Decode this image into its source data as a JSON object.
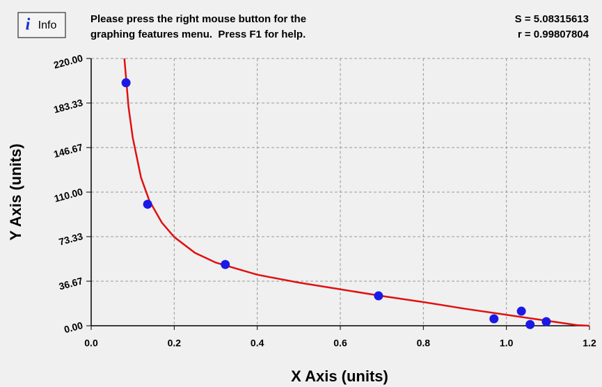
{
  "header": {
    "info_button": "Info",
    "message": [
      "Please press the right mouse button for the",
      "graphing features menu.  Press F1 for help."
    ],
    "stats": [
      "S = 5.08315613",
      "r = 0.99807804"
    ]
  },
  "chart_data": {
    "type": "scatter",
    "xlabel": "X Axis (units)",
    "ylabel": "Y Axis (units)",
    "xlim": [
      0,
      1.2
    ],
    "ylim": [
      0,
      220
    ],
    "xticks": [
      {
        "value": 0,
        "label": "0.0"
      },
      0.2,
      0.4,
      0.6,
      0.8,
      {
        "value": 1,
        "label": "1.0"
      },
      1.2
    ],
    "yticks": [
      {
        "value": 0,
        "label": "0.00"
      },
      36.67,
      73.33,
      {
        "value": 110,
        "label": "110.00"
      },
      146.67,
      183.33,
      {
        "value": 220,
        "label": "220.00"
      }
    ],
    "grid": true,
    "series": [
      {
        "type": "scatter",
        "color": "#1a1ae6",
        "x": [
          0.084,
          0.136,
          0.323,
          0.692,
          0.97,
          1.036,
          1.057,
          1.096
        ],
        "values": [
          200,
          100,
          50.4,
          24.6,
          5.7,
          12,
          1,
          3.4
        ]
      },
      {
        "type": "line",
        "color": "#e01010",
        "x": [
          0.08,
          0.09,
          0.1,
          0.12,
          0.14,
          0.17,
          0.2,
          0.25,
          0.3,
          0.4,
          0.5,
          0.6,
          0.7,
          0.8,
          0.9,
          1.0,
          1.1,
          1.17,
          1.2
        ],
        "values": [
          220,
          180,
          155,
          122,
          103,
          85,
          73,
          60,
          52,
          42,
          35.5,
          30,
          24.5,
          19.5,
          14,
          9,
          4,
          0.5,
          0
        ]
      }
    ]
  }
}
